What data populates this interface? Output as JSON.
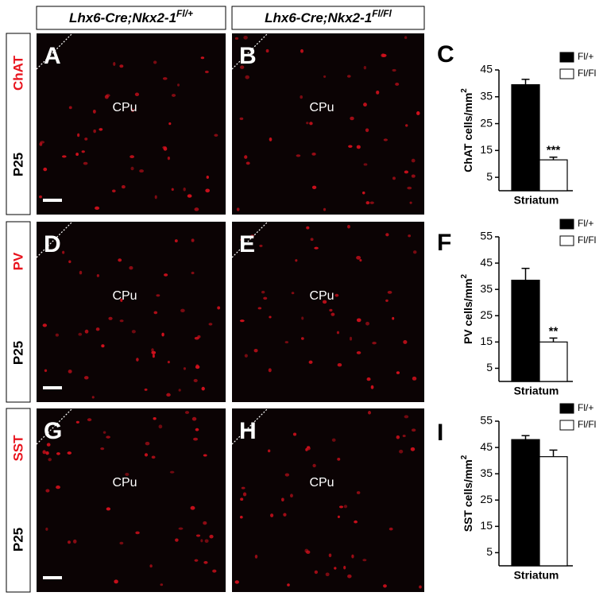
{
  "header": {
    "columns": [
      {
        "text": "Lhx6-Cre;Nkx2-1",
        "sup": "Fl/+"
      },
      {
        "text": "Lhx6-Cre;Nkx2-1",
        "sup": "Fl/Fl"
      }
    ]
  },
  "rows": [
    {
      "marker": "ChAT",
      "age": "P25",
      "panels": [
        "A",
        "B"
      ],
      "region": "CPu"
    },
    {
      "marker": "PV",
      "age": "P25",
      "panels": [
        "D",
        "E"
      ],
      "region": "CPu"
    },
    {
      "marker": "SST",
      "age": "P25",
      "panels": [
        "G",
        "H"
      ],
      "region": "CPu"
    }
  ],
  "chart_data": [
    {
      "type": "bar",
      "panel": "C",
      "ylabel": "ChAT cells/mm",
      "ylabel_sup": "2",
      "categories": [
        "Striatum"
      ],
      "series": [
        {
          "name": "Fl/+",
          "color": "#000000",
          "values": [
            39.5
          ],
          "errors": [
            2
          ]
        },
        {
          "name": "Fl/Fl",
          "color": "#ffffff",
          "values": [
            11.5
          ],
          "errors": [
            1
          ],
          "annotation": "***"
        }
      ],
      "ylim": [
        0,
        45
      ],
      "yticks": [
        5,
        15,
        25,
        35,
        45
      ]
    },
    {
      "type": "bar",
      "panel": "F",
      "ylabel": "PV cells/mm",
      "ylabel_sup": "2",
      "categories": [
        "Striatum"
      ],
      "series": [
        {
          "name": "Fl/+",
          "color": "#000000",
          "values": [
            38.5
          ],
          "errors": [
            4.5
          ]
        },
        {
          "name": "Fl/Fl",
          "color": "#ffffff",
          "values": [
            15
          ],
          "errors": [
            1.5
          ],
          "annotation": "**"
        }
      ],
      "ylim": [
        0,
        55
      ],
      "yticks": [
        5,
        15,
        25,
        35,
        45,
        55
      ]
    },
    {
      "type": "bar",
      "panel": "I",
      "ylabel": "SST cells/mm",
      "ylabel_sup": "2",
      "categories": [
        "Striatum"
      ],
      "series": [
        {
          "name": "Fl/+",
          "color": "#000000",
          "values": [
            48
          ],
          "errors": [
            1.5
          ]
        },
        {
          "name": "Fl/Fl",
          "color": "#ffffff",
          "values": [
            41.5
          ],
          "errors": [
            2.5
          ]
        }
      ],
      "ylim": [
        0,
        55
      ],
      "yticks": [
        5,
        15,
        25,
        35,
        45,
        55
      ]
    }
  ]
}
